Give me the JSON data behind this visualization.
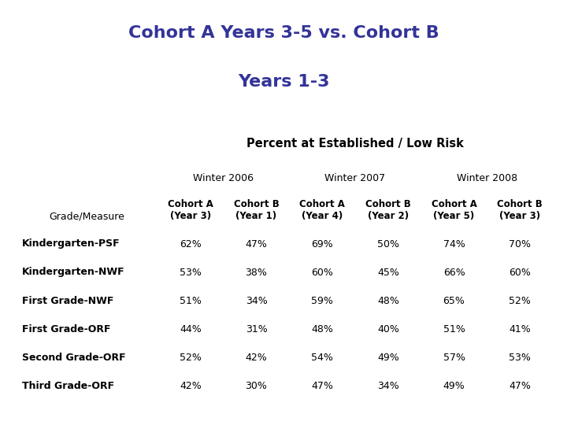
{
  "title_line1": "Cohort A Years 3-5 vs. Cohort B",
  "title_line2": "Years 1-3",
  "title_bg": "#ffffaa",
  "title_color": "#333399",
  "header1": "Percent at Established / Low Risk",
  "subheader": [
    "Winter 2006",
    "Winter 2007",
    "Winter 2008"
  ],
  "col_header_texts": [
    "Cohort A\n(Year 3)",
    "Cohort B\n(Year 1)",
    "Cohort A\n(Year 4)",
    "Cohort B\n(Year 2)",
    "Cohort A\n(Year 5)",
    "Cohort B\n(Year 3)"
  ],
  "row_labels": [
    "Kindergarten-PSF",
    "Kindergarten-NWF",
    "First Grade-NWF",
    "First Grade-ORF",
    "Second Grade-ORF",
    "Third Grade-ORF"
  ],
  "data": [
    [
      "62%",
      "47%",
      "69%",
      "50%",
      "74%",
      "70%"
    ],
    [
      "53%",
      "38%",
      "60%",
      "45%",
      "66%",
      "60%"
    ],
    [
      "51%",
      "34%",
      "59%",
      "48%",
      "65%",
      "52%"
    ],
    [
      "44%",
      "31%",
      "48%",
      "40%",
      "51%",
      "41%"
    ],
    [
      "52%",
      "42%",
      "54%",
      "49%",
      "57%",
      "53%"
    ],
    [
      "42%",
      "30%",
      "47%",
      "34%",
      "49%",
      "47%"
    ]
  ],
  "bg_color": "#ffffff",
  "subheader_bg": "#cccccc",
  "title_edge_color": "#cccc66"
}
